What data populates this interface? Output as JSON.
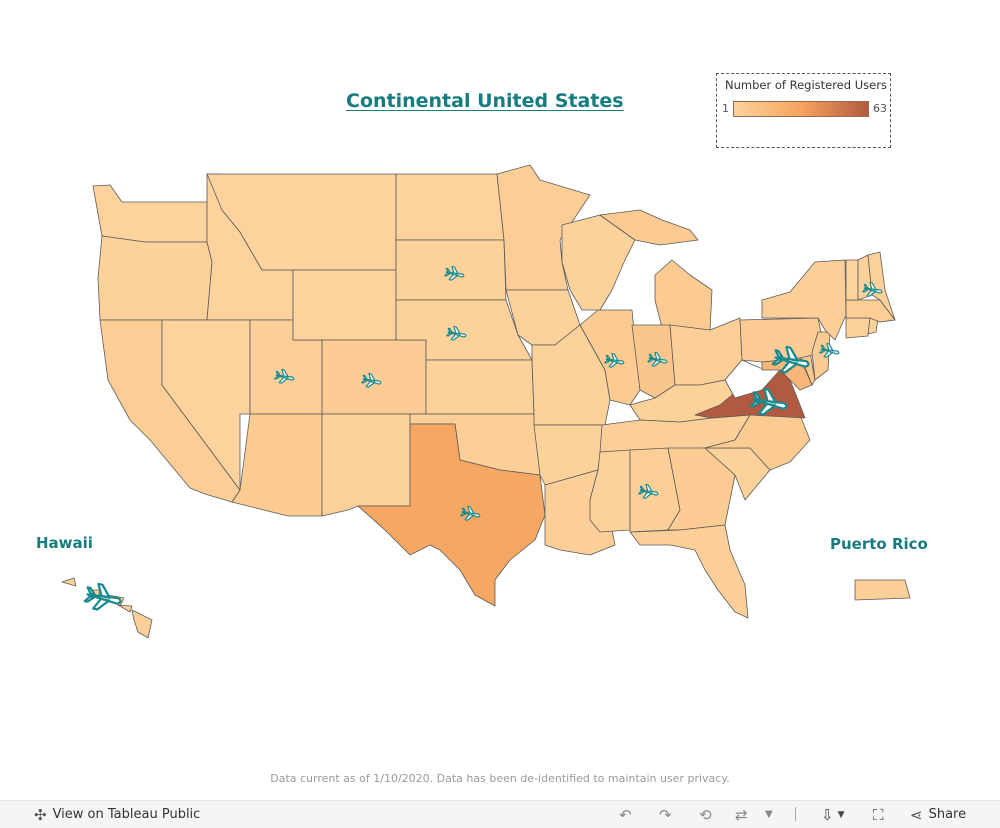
{
  "title": "Continental United States",
  "legend": {
    "title": "Number of Registered Users",
    "min": "1",
    "max": "63",
    "colors": [
      "#fdd29c",
      "#f6a45e",
      "#b25a40"
    ]
  },
  "labels": {
    "hawaii": "Hawaii",
    "puerto_rico": "Puerto Rico"
  },
  "footer_note": "Data current as of 1/10/2020. Data has been de-identified to maintain user privacy.",
  "toolbar": {
    "view_label": "View on Tableau Public",
    "share_label": "Share",
    "icons": [
      "tableau-icon",
      "undo-icon",
      "redo-icon",
      "revert-icon",
      "refresh-icon",
      "chevron-down-icon",
      "download-icon",
      "fullscreen-icon",
      "share-icon"
    ]
  },
  "marker_icon": "airplane-icon",
  "states": [
    {
      "name": "Washington",
      "users": 1
    },
    {
      "name": "Oregon",
      "users": 2
    },
    {
      "name": "California",
      "users": 4
    },
    {
      "name": "Idaho",
      "users": 1
    },
    {
      "name": "Nevada",
      "users": 1
    },
    {
      "name": "Utah",
      "users": 3
    },
    {
      "name": "Arizona",
      "users": 6
    },
    {
      "name": "Montana",
      "users": 1
    },
    {
      "name": "Wyoming",
      "users": 1
    },
    {
      "name": "Colorado",
      "users": 5
    },
    {
      "name": "New Mexico",
      "users": 2
    },
    {
      "name": "North Dakota",
      "users": 1
    },
    {
      "name": "South Dakota",
      "users": 2
    },
    {
      "name": "Nebraska",
      "users": 2
    },
    {
      "name": "Kansas",
      "users": 2
    },
    {
      "name": "Oklahoma",
      "users": 3
    },
    {
      "name": "Texas",
      "users": 30
    },
    {
      "name": "Minnesota",
      "users": 4
    },
    {
      "name": "Iowa",
      "users": 2
    },
    {
      "name": "Missouri",
      "users": 2
    },
    {
      "name": "Arkansas",
      "users": 2
    },
    {
      "name": "Louisiana",
      "users": 3
    },
    {
      "name": "Wisconsin",
      "users": 2
    },
    {
      "name": "Illinois",
      "users": 6
    },
    {
      "name": "Michigan",
      "users": 6
    },
    {
      "name": "Indiana",
      "users": 9
    },
    {
      "name": "Ohio",
      "users": 3
    },
    {
      "name": "Kentucky",
      "users": 2
    },
    {
      "name": "Tennessee",
      "users": 3
    },
    {
      "name": "Mississippi",
      "users": 2
    },
    {
      "name": "Alabama",
      "users": 3
    },
    {
      "name": "Georgia",
      "users": 5
    },
    {
      "name": "Florida",
      "users": 3
    },
    {
      "name": "South Carolina",
      "users": 2
    },
    {
      "name": "North Carolina",
      "users": 6
    },
    {
      "name": "Virginia",
      "users": 63
    },
    {
      "name": "West Virginia",
      "users": 0
    },
    {
      "name": "Maryland",
      "users": 20
    },
    {
      "name": "Delaware",
      "users": 8
    },
    {
      "name": "Pennsylvania",
      "users": 5
    },
    {
      "name": "New Jersey",
      "users": 6
    },
    {
      "name": "New York",
      "users": 3
    },
    {
      "name": "Connecticut",
      "users": 2
    },
    {
      "name": "Rhode Island",
      "users": 2
    },
    {
      "name": "Massachusetts",
      "users": 4
    },
    {
      "name": "Vermont",
      "users": 1
    },
    {
      "name": "New Hampshire",
      "users": 2
    },
    {
      "name": "Maine",
      "users": 2
    },
    {
      "name": "Hawaii",
      "users": 3
    },
    {
      "name": "Puerto Rico",
      "users": 3
    }
  ],
  "markers": [
    "South Dakota",
    "Nebraska",
    "Utah",
    "Colorado",
    "Texas",
    "Illinois",
    "Indiana",
    "Alabama",
    "Maryland",
    "Virginia",
    "New Jersey",
    "Maine",
    "Hawaii"
  ]
}
